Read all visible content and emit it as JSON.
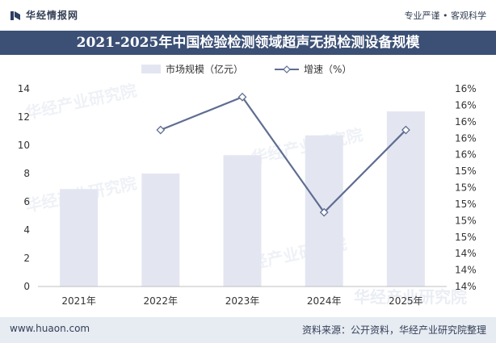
{
  "header": {
    "brand": "华经情报网",
    "slogan": "专业严谨 • 客观科学"
  },
  "chart_data": {
    "type": "bar",
    "title": "2021-2025年中国检验检测领域超声无损检测设备规模",
    "categories": [
      "2021年",
      "2022年",
      "2023年",
      "2024年",
      "2025年"
    ],
    "series": [
      {
        "name": "市场规模（亿元）",
        "type": "bar",
        "axis": "left",
        "values": [
          6.9,
          8.0,
          9.3,
          10.7,
          12.4
        ]
      },
      {
        "name": "增速（%）",
        "type": "line",
        "axis": "right",
        "values": [
          null,
          15.9,
          16.3,
          14.9,
          15.9
        ]
      }
    ],
    "y_left": {
      "min": 0,
      "max": 14,
      "ticks": [
        0,
        2,
        4,
        6,
        8,
        10,
        12,
        14
      ]
    },
    "y_right": {
      "min": 14,
      "max": 16.4,
      "tick_values": [
        14,
        14.2,
        14.4,
        14.6,
        14.8,
        15,
        15.2,
        15.4,
        15.6,
        15.8,
        16,
        16.2,
        16.4
      ],
      "tick_labels": [
        "14%",
        "14%",
        "14%",
        "15%",
        "15%",
        "15%",
        "15%",
        "15%",
        "16%",
        "16%",
        "16%",
        "16%",
        "16%"
      ]
    },
    "legend_position": "top",
    "grid": false,
    "colors": {
      "bar": "#e3e6f1",
      "line": "#5f6d91",
      "title_band": "#3c5076"
    }
  },
  "watermark": "华经产业研究院",
  "footer": {
    "site": "www.huaon.com",
    "source": "资料来源：公开资料，华经产业研究院整理"
  }
}
